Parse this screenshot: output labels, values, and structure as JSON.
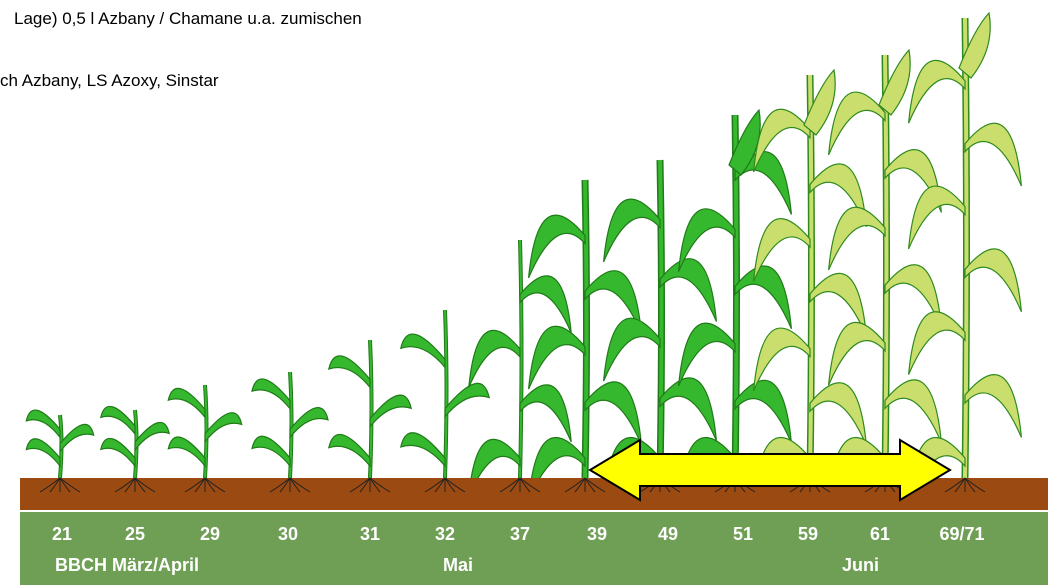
{
  "header": {
    "line1": "Lage) 0,5 l Azbany / Chamane  u.a. zumischen",
    "line2": "ch Azbany, LS Azoxy, Sinstar"
  },
  "stages": {
    "codes": [
      "21",
      "25",
      "29",
      "30",
      "31",
      "32",
      "37",
      "39",
      "49",
      "51",
      "59",
      "61",
      "69/71"
    ],
    "periods": [
      "BBCH März/April",
      "Mai",
      "Juni"
    ]
  }
}
